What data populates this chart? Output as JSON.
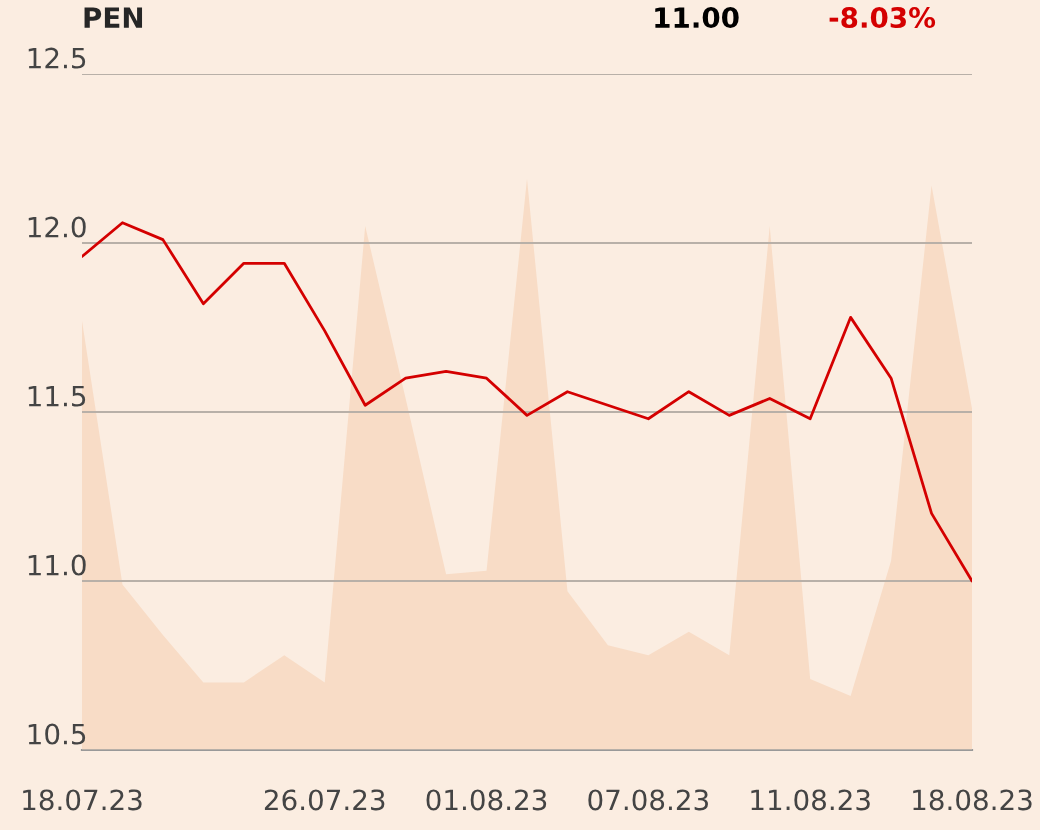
{
  "chart_data": {
    "type": "line",
    "title": "PEN",
    "annotations": [
      "11.00",
      "-8.03%"
    ],
    "categories": [
      "18.07.23",
      null,
      null,
      null,
      null,
      null,
      "26.07.23",
      null,
      null,
      null,
      "01.08.23",
      null,
      null,
      null,
      "07.08.23",
      null,
      null,
      null,
      "11.08.23",
      null,
      null,
      null,
      "18.08.23"
    ],
    "series": [
      {
        "type": "area",
        "color": "#f8dcc6",
        "values": [
          11.77,
          10.99,
          10.84,
          10.7,
          10.7,
          10.78,
          10.7,
          12.05,
          11.54,
          11.02,
          11.03,
          12.19,
          10.97,
          10.81,
          10.78,
          10.85,
          10.78,
          12.05,
          10.71,
          10.66,
          11.06,
          12.17,
          11.51
        ]
      },
      {
        "color": "#d40000",
        "values": [
          11.96,
          12.06,
          12.01,
          11.82,
          11.94,
          11.94,
          11.74,
          11.52,
          11.6,
          11.62,
          11.6,
          11.49,
          11.56,
          11.52,
          11.48,
          11.56,
          11.49,
          11.54,
          11.48,
          11.78,
          11.6,
          11.2,
          11.0
        ]
      }
    ],
    "ylim": [
      10.5,
      12.5
    ],
    "yticks": [
      10.5,
      {
        "value": 11,
        "label": "11.0"
      },
      11.5,
      {
        "value": 12,
        "label": "12.0"
      },
      12.5
    ],
    "grid": "y",
    "legend": false
  }
}
